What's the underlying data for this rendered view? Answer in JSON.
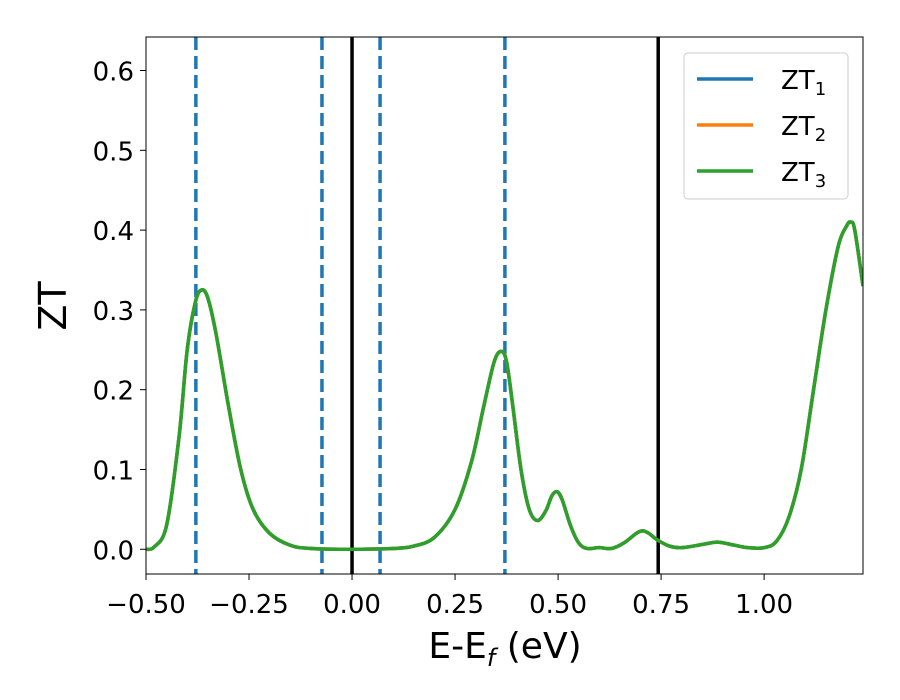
{
  "chart_data": {
    "type": "line",
    "title": "",
    "xlabel": "E-E",
    "xlabel_sub": "f",
    "xlabel_unit": " (eV)",
    "ylabel": "ZT",
    "xlim": [
      -0.5,
      1.24
    ],
    "ylim": [
      -0.031,
      0.642
    ],
    "grid": false,
    "legend_placement": "top-right",
    "xticks": [
      -0.5,
      -0.25,
      0.0,
      0.25,
      0.5,
      0.75,
      1.0
    ],
    "xtick_labels": [
      "−0.50",
      "−0.25",
      "0.00",
      "0.25",
      "0.50",
      "0.75",
      "1.00"
    ],
    "yticks": [
      0.0,
      0.1,
      0.2,
      0.3,
      0.4,
      0.5,
      0.6
    ],
    "ytick_labels": [
      "0.0",
      "0.1",
      "0.2",
      "0.3",
      "0.4",
      "0.5",
      "0.6"
    ],
    "vlines_dashed": {
      "color": "#1f77b4",
      "x": [
        -0.379,
        -0.073,
        0.068,
        0.371
      ]
    },
    "vlines_solid": {
      "color": "#000000",
      "x": [
        0.0,
        0.743
      ]
    },
    "x": [
      -0.5,
      -0.48,
      -0.45,
      -0.42,
      -0.4,
      -0.38,
      -0.365,
      -0.35,
      -0.33,
      -0.3,
      -0.27,
      -0.24,
      -0.2,
      -0.15,
      -0.1,
      0.0,
      0.1,
      0.15,
      0.2,
      0.25,
      0.29,
      0.32,
      0.345,
      0.362,
      0.375,
      0.39,
      0.41,
      0.43,
      0.45,
      0.47,
      0.485,
      0.498,
      0.51,
      0.53,
      0.55,
      0.57,
      0.6,
      0.63,
      0.66,
      0.69,
      0.705,
      0.72,
      0.74,
      0.77,
      0.8,
      0.85,
      0.886,
      0.92,
      0.96,
      1.0,
      1.03,
      1.06,
      1.09,
      1.12,
      1.15,
      1.18,
      1.2,
      1.21,
      1.22,
      1.24
    ],
    "series": [
      {
        "name": "ZT",
        "sub": "1",
        "color": "#1f77b4",
        "values": [
          0.0,
          0.003,
          0.03,
          0.14,
          0.25,
          0.31,
          0.325,
          0.315,
          0.27,
          0.18,
          0.1,
          0.05,
          0.02,
          0.005,
          0.001,
          0.0,
          0.001,
          0.004,
          0.015,
          0.05,
          0.11,
          0.18,
          0.235,
          0.248,
          0.235,
          0.18,
          0.1,
          0.05,
          0.036,
          0.048,
          0.067,
          0.072,
          0.062,
          0.03,
          0.008,
          0.001,
          0.002,
          0.001,
          0.008,
          0.02,
          0.023,
          0.02,
          0.012,
          0.004,
          0.002,
          0.006,
          0.009,
          0.006,
          0.002,
          0.002,
          0.01,
          0.04,
          0.1,
          0.2,
          0.3,
          0.38,
          0.405,
          0.41,
          0.4,
          0.33
        ]
      },
      {
        "name": "ZT",
        "sub": "2",
        "color": "#ff7f0e",
        "values": [
          0.0,
          0.003,
          0.03,
          0.14,
          0.25,
          0.31,
          0.325,
          0.315,
          0.27,
          0.18,
          0.1,
          0.05,
          0.02,
          0.005,
          0.001,
          0.0,
          0.001,
          0.004,
          0.015,
          0.05,
          0.11,
          0.18,
          0.235,
          0.248,
          0.235,
          0.18,
          0.1,
          0.05,
          0.036,
          0.048,
          0.067,
          0.072,
          0.062,
          0.03,
          0.008,
          0.001,
          0.002,
          0.001,
          0.008,
          0.02,
          0.023,
          0.02,
          0.012,
          0.004,
          0.002,
          0.006,
          0.009,
          0.006,
          0.002,
          0.002,
          0.01,
          0.04,
          0.1,
          0.2,
          0.3,
          0.38,
          0.405,
          0.41,
          0.4,
          0.33
        ]
      },
      {
        "name": "ZT",
        "sub": "3",
        "color": "#2ca02c",
        "values": [
          0.0,
          0.003,
          0.03,
          0.14,
          0.25,
          0.31,
          0.325,
          0.315,
          0.27,
          0.18,
          0.1,
          0.05,
          0.02,
          0.005,
          0.001,
          0.0,
          0.001,
          0.004,
          0.015,
          0.05,
          0.11,
          0.18,
          0.235,
          0.248,
          0.235,
          0.18,
          0.1,
          0.05,
          0.036,
          0.048,
          0.067,
          0.072,
          0.062,
          0.03,
          0.008,
          0.001,
          0.002,
          0.001,
          0.008,
          0.02,
          0.023,
          0.02,
          0.012,
          0.004,
          0.002,
          0.006,
          0.009,
          0.006,
          0.002,
          0.002,
          0.01,
          0.04,
          0.1,
          0.2,
          0.3,
          0.38,
          0.405,
          0.41,
          0.4,
          0.33
        ]
      }
    ]
  }
}
